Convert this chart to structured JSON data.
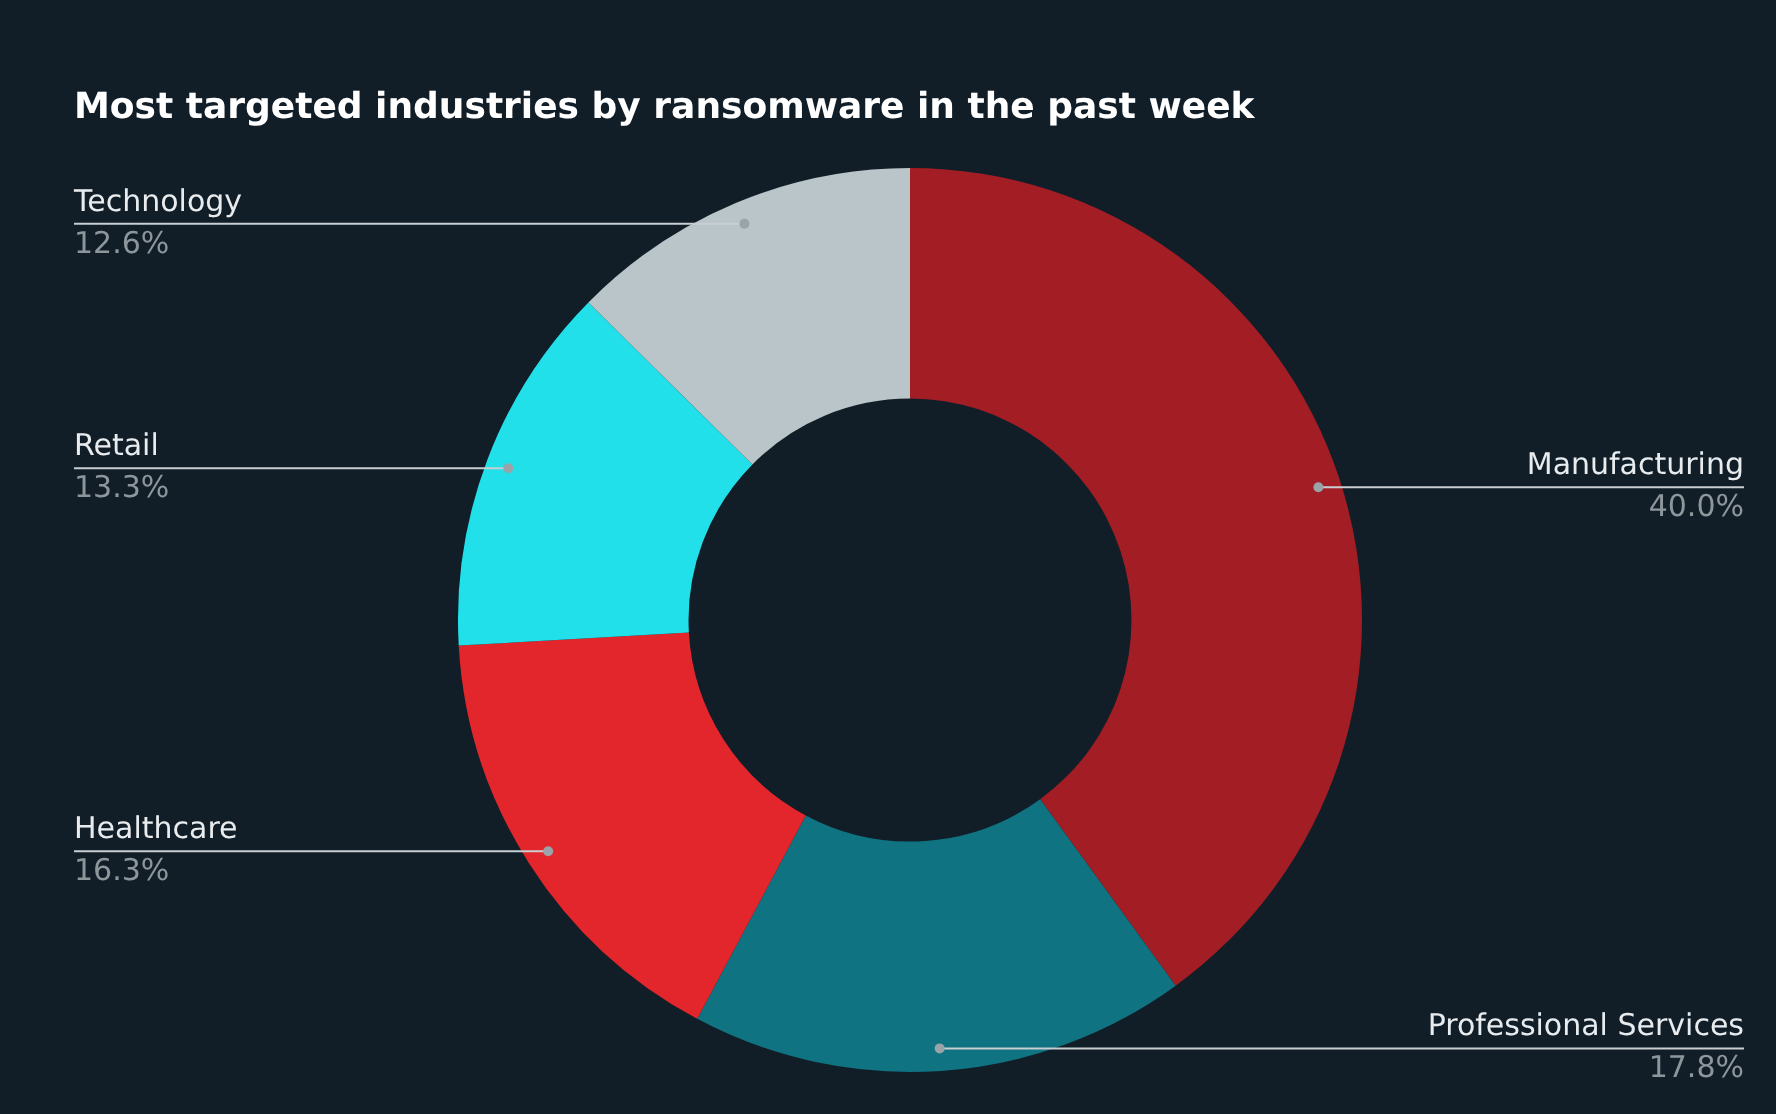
{
  "chart_data": {
    "type": "donut",
    "title": "Most targeted industries by ransomware in the past week",
    "categories": [
      "Manufacturing",
      "Professional Services",
      "Healthcare",
      "Retail",
      "Technology"
    ],
    "values": [
      40.0,
      17.8,
      16.3,
      13.3,
      12.6
    ],
    "colors": [
      "#a31d24",
      "#0f7381",
      "#e3262b",
      "#22e0ea",
      "#b9c5c9"
    ],
    "value_labels": [
      "40.0%",
      "17.8%",
      "16.3%",
      "13.3%",
      "12.6%"
    ],
    "legend": false
  }
}
